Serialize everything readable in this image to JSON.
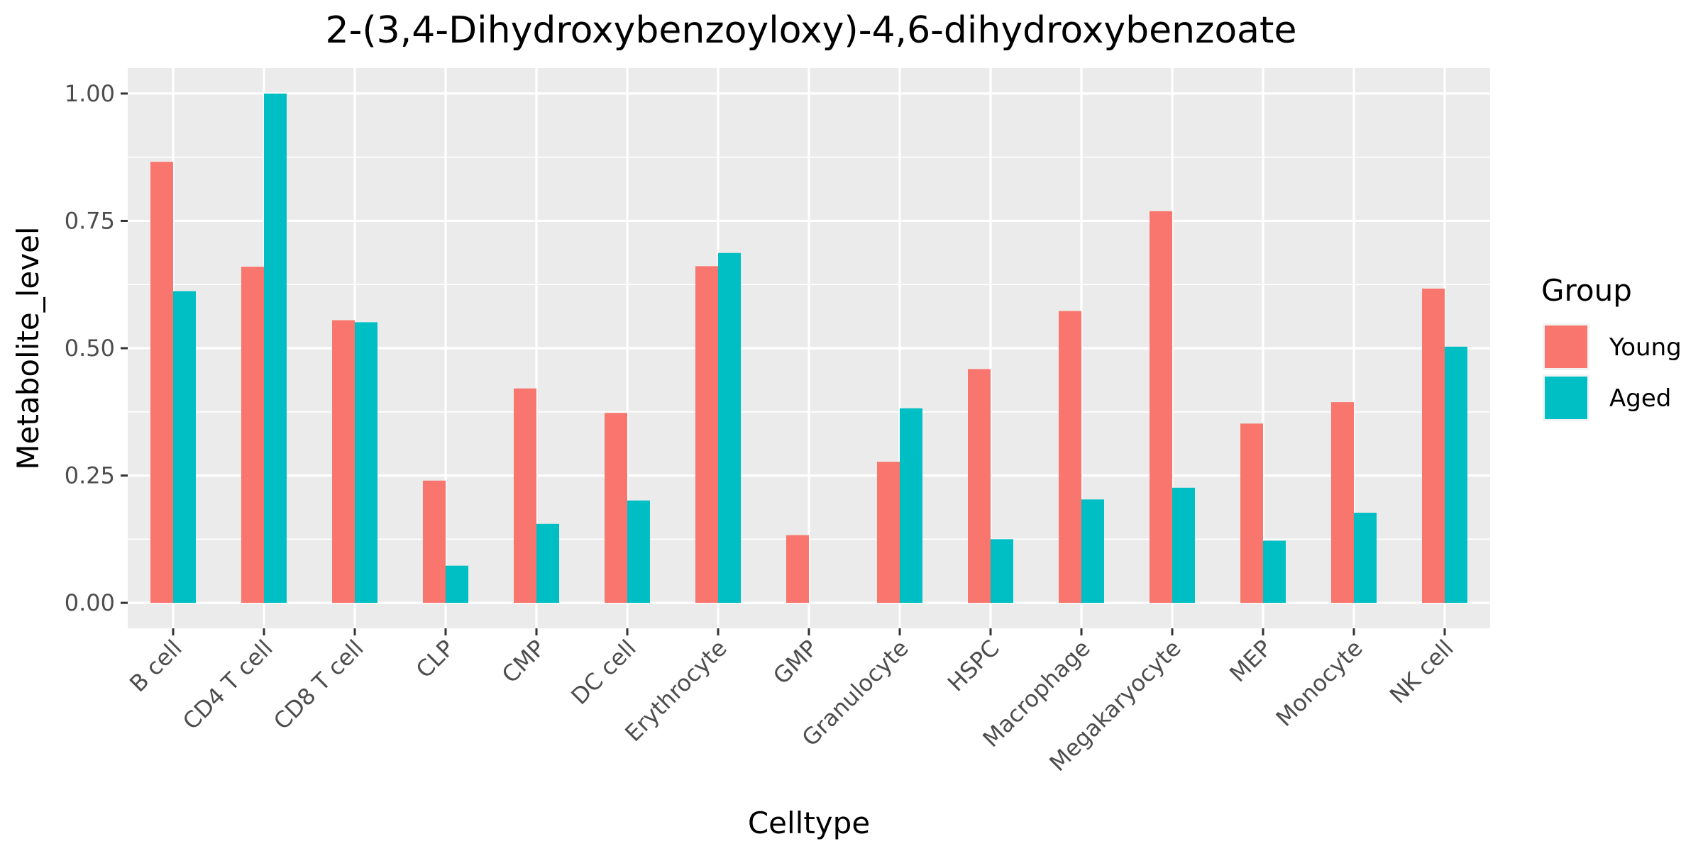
{
  "chart_data": {
    "type": "bar",
    "title": "2-(3,4-Dihydroxybenzoyloxy)-4,6-dihydroxybenzoate",
    "xlabel": "Celltype",
    "ylabel": "Metabolite_level",
    "ylim": [
      -0.05,
      1.05
    ],
    "yticks": [
      0.0,
      0.25,
      0.5,
      0.75,
      1.0
    ],
    "ytick_labels": [
      "0.00",
      "0.25",
      "0.50",
      "0.75",
      "1.00"
    ],
    "grid": true,
    "legend_position": "right",
    "legend_title": "Group",
    "categories": [
      "B cell",
      "CD4 T cell",
      "CD8 T cell",
      "CLP",
      "CMP",
      "DC cell",
      "Erythrocyte",
      "GMP",
      "Granulocyte",
      "HSPC",
      "Macrophage",
      "Megakaryocyte",
      "MEP",
      "Monocyte",
      "NK cell"
    ],
    "series": [
      {
        "name": "Young",
        "color": "#F8766D",
        "values": [
          0.866,
          0.66,
          0.555,
          0.24,
          0.421,
          0.373,
          0.661,
          0.133,
          0.277,
          0.459,
          0.573,
          0.769,
          0.352,
          0.394,
          0.617
        ]
      },
      {
        "name": "Aged",
        "color": "#00BFC4",
        "values": [
          0.612,
          1.0,
          0.551,
          0.073,
          0.155,
          0.201,
          0.687,
          0.0,
          0.382,
          0.125,
          0.203,
          0.226,
          0.122,
          0.177,
          0.503
        ]
      }
    ]
  }
}
